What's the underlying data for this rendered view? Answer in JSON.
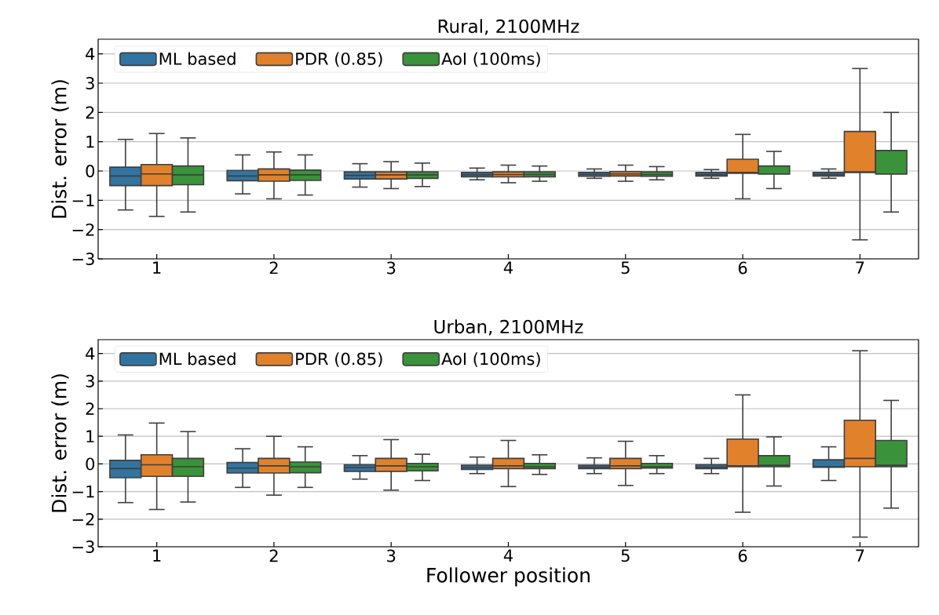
{
  "chart_data": [
    {
      "type": "box",
      "title": "Rural, 2100MHz",
      "ylabel": "Dist. error (m)",
      "categories": [
        "1",
        "2",
        "3",
        "4",
        "5",
        "6",
        "7"
      ],
      "ylim": [
        -3,
        4.5
      ],
      "yticks": [
        {
          "value": -3,
          "label": "−3"
        },
        {
          "value": -2,
          "label": "−2"
        },
        {
          "value": -1,
          "label": "−1"
        },
        0,
        1,
        2,
        3,
        4
      ],
      "grid": "y",
      "legend": "top left",
      "series": [
        {
          "name": "ML based",
          "color": "#3274a1",
          "boxes": [
            {
              "low": -1.33,
              "q1": -0.5,
              "median": -0.17,
              "q3": 0.13,
              "high": 1.08
            },
            {
              "low": -0.78,
              "q1": -0.33,
              "median": -0.17,
              "q3": 0.02,
              "high": 0.55
            },
            {
              "low": -0.55,
              "q1": -0.27,
              "median": -0.15,
              "q3": -0.03,
              "high": 0.25
            },
            {
              "low": -0.3,
              "q1": -0.2,
              "median": -0.13,
              "q3": -0.05,
              "high": 0.1
            },
            {
              "low": -0.25,
              "q1": -0.18,
              "median": -0.12,
              "q3": -0.05,
              "high": 0.07
            },
            {
              "low": -0.25,
              "q1": -0.17,
              "median": -0.12,
              "q3": -0.05,
              "high": 0.05
            },
            {
              "low": -0.25,
              "q1": -0.17,
              "median": -0.12,
              "q3": -0.05,
              "high": 0.07
            }
          ]
        },
        {
          "name": "PDR (0.85)",
          "color": "#e1812c",
          "boxes": [
            {
              "low": -1.55,
              "q1": -0.5,
              "median": -0.1,
              "q3": 0.22,
              "high": 1.28
            },
            {
              "low": -0.95,
              "q1": -0.35,
              "median": -0.13,
              "q3": 0.07,
              "high": 0.65
            },
            {
              "low": -0.6,
              "q1": -0.27,
              "median": -0.13,
              "q3": -0.03,
              "high": 0.32
            },
            {
              "low": -0.4,
              "q1": -0.2,
              "median": -0.12,
              "q3": -0.03,
              "high": 0.2
            },
            {
              "low": -0.35,
              "q1": -0.17,
              "median": -0.1,
              "q3": -0.02,
              "high": 0.2
            },
            {
              "low": -0.95,
              "q1": -0.08,
              "median": -0.05,
              "q3": 0.4,
              "high": 1.25
            },
            {
              "low": -2.35,
              "q1": -0.05,
              "median": -0.03,
              "q3": 1.35,
              "high": 3.5
            }
          ]
        },
        {
          "name": "AoI (100ms)",
          "color": "#3a923a",
          "boxes": [
            {
              "low": -1.4,
              "q1": -0.47,
              "median": -0.13,
              "q3": 0.17,
              "high": 1.13
            },
            {
              "low": -0.82,
              "q1": -0.32,
              "median": -0.13,
              "q3": 0.03,
              "high": 0.55
            },
            {
              "low": -0.53,
              "q1": -0.25,
              "median": -0.13,
              "q3": -0.03,
              "high": 0.27
            },
            {
              "low": -0.35,
              "q1": -0.2,
              "median": -0.12,
              "q3": -0.03,
              "high": 0.17
            },
            {
              "low": -0.3,
              "q1": -0.18,
              "median": -0.12,
              "q3": -0.03,
              "high": 0.15
            },
            {
              "low": -0.6,
              "q1": -0.1,
              "median": -0.1,
              "q3": 0.17,
              "high": 0.67
            },
            {
              "low": -1.4,
              "q1": -0.1,
              "median": -0.1,
              "q3": 0.7,
              "high": 2.0
            }
          ]
        }
      ]
    },
    {
      "type": "box",
      "title": "Urban, 2100MHz",
      "ylabel": "Dist. error (m)",
      "xlabel": "Follower position",
      "categories": [
        "1",
        "2",
        "3",
        "4",
        "5",
        "6",
        "7"
      ],
      "ylim": [
        -3,
        4.5
      ],
      "yticks": [
        {
          "value": -3,
          "label": "−3"
        },
        {
          "value": -2,
          "label": "−2"
        },
        {
          "value": -1,
          "label": "−1"
        },
        0,
        1,
        2,
        3,
        4
      ],
      "grid": "y",
      "legend": "top left",
      "series": [
        {
          "name": "ML based",
          "color": "#3274a1",
          "boxes": [
            {
              "low": -1.4,
              "q1": -0.5,
              "median": -0.17,
              "q3": 0.13,
              "high": 1.05
            },
            {
              "low": -0.85,
              "q1": -0.33,
              "median": -0.15,
              "q3": 0.05,
              "high": 0.55
            },
            {
              "low": -0.55,
              "q1": -0.27,
              "median": -0.13,
              "q3": -0.03,
              "high": 0.3
            },
            {
              "low": -0.35,
              "q1": -0.2,
              "median": -0.13,
              "q3": -0.05,
              "high": 0.25
            },
            {
              "low": -0.35,
              "q1": -0.17,
              "median": -0.12,
              "q3": -0.05,
              "high": 0.22
            },
            {
              "low": -0.35,
              "q1": -0.17,
              "median": -0.12,
              "q3": -0.03,
              "high": 0.2
            },
            {
              "low": -0.6,
              "q1": -0.12,
              "median": -0.1,
              "q3": 0.15,
              "high": 0.62
            }
          ]
        },
        {
          "name": "PDR (0.85)",
          "color": "#e1812c",
          "boxes": [
            {
              "low": -1.65,
              "q1": -0.45,
              "median": -0.03,
              "q3": 0.33,
              "high": 1.48
            },
            {
              "low": -1.13,
              "q1": -0.33,
              "median": -0.07,
              "q3": 0.2,
              "high": 1.0
            },
            {
              "low": -0.95,
              "q1": -0.27,
              "median": -0.07,
              "q3": 0.2,
              "high": 0.88
            },
            {
              "low": -0.82,
              "q1": -0.17,
              "median": -0.07,
              "q3": 0.2,
              "high": 0.85
            },
            {
              "low": -0.78,
              "q1": -0.17,
              "median": -0.07,
              "q3": 0.2,
              "high": 0.82
            },
            {
              "low": -1.75,
              "q1": -0.1,
              "median": -0.07,
              "q3": 0.9,
              "high": 2.5
            },
            {
              "low": -2.65,
              "q1": -0.1,
              "median": 0.2,
              "q3": 1.58,
              "high": 4.1
            }
          ]
        },
        {
          "name": "AoI (100ms)",
          "color": "#3a923a",
          "boxes": [
            {
              "low": -1.38,
              "q1": -0.45,
              "median": -0.1,
              "q3": 0.2,
              "high": 1.17
            },
            {
              "low": -0.85,
              "q1": -0.32,
              "median": -0.1,
              "q3": 0.07,
              "high": 0.62
            },
            {
              "low": -0.6,
              "q1": -0.25,
              "median": -0.1,
              "q3": 0.02,
              "high": 0.35
            },
            {
              "low": -0.38,
              "q1": -0.17,
              "median": -0.1,
              "q3": 0.02,
              "high": 0.33
            },
            {
              "low": -0.35,
              "q1": -0.15,
              "median": -0.1,
              "q3": 0.02,
              "high": 0.3
            },
            {
              "low": -0.8,
              "q1": -0.1,
              "median": -0.05,
              "q3": 0.3,
              "high": 0.98
            },
            {
              "low": -1.6,
              "q1": -0.1,
              "median": -0.05,
              "q3": 0.85,
              "high": 2.3
            }
          ]
        }
      ]
    }
  ]
}
